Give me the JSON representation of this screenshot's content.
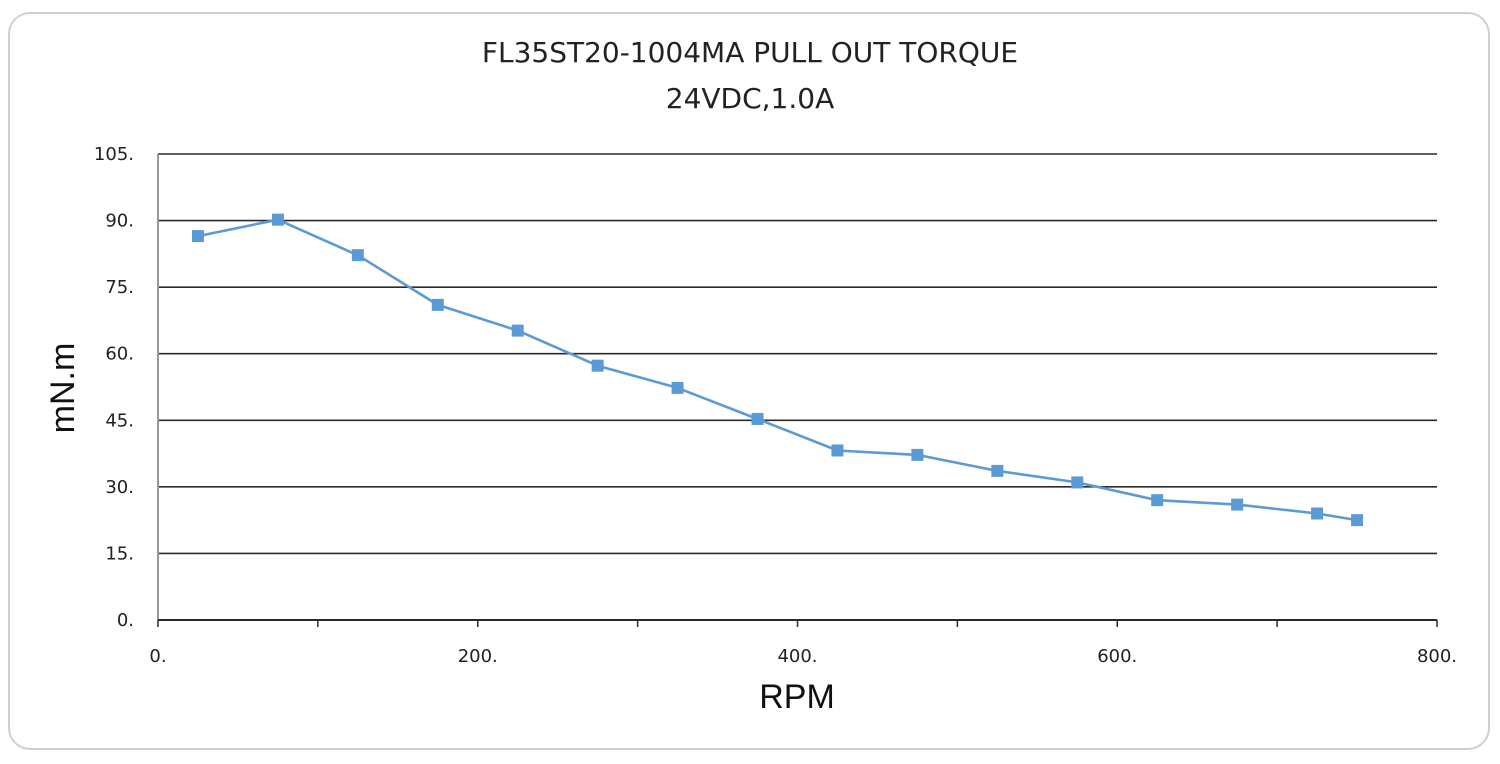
{
  "chart_data": {
    "type": "line",
    "title": "FL35ST20-1004MA  PULL OUT TORQUE",
    "subtitle": "24VDC,1.0A",
    "xlabel": "RPM",
    "ylabel": "mN.m",
    "xlim": [
      0,
      800
    ],
    "ylim": [
      0,
      105
    ],
    "xticks": [
      "0.",
      "200.",
      "400.",
      "600.",
      "800."
    ],
    "yticks": [
      "0.",
      "15.",
      "30.",
      "45.",
      "60.",
      "75.",
      "90.",
      "105."
    ],
    "grid": true,
    "series": [
      {
        "color": "#5b9bd5",
        "x": [
          25,
          75,
          125,
          175,
          225,
          275,
          325,
          375,
          425,
          475,
          525,
          575,
          625,
          675,
          725,
          750
        ],
        "y": [
          86.5,
          90.2,
          82.2,
          71.0,
          65.2,
          57.3,
          52.3,
          45.3,
          38.2,
          37.2,
          33.6,
          31.0,
          27.0,
          26.0,
          24.0,
          22.5
        ]
      }
    ]
  }
}
